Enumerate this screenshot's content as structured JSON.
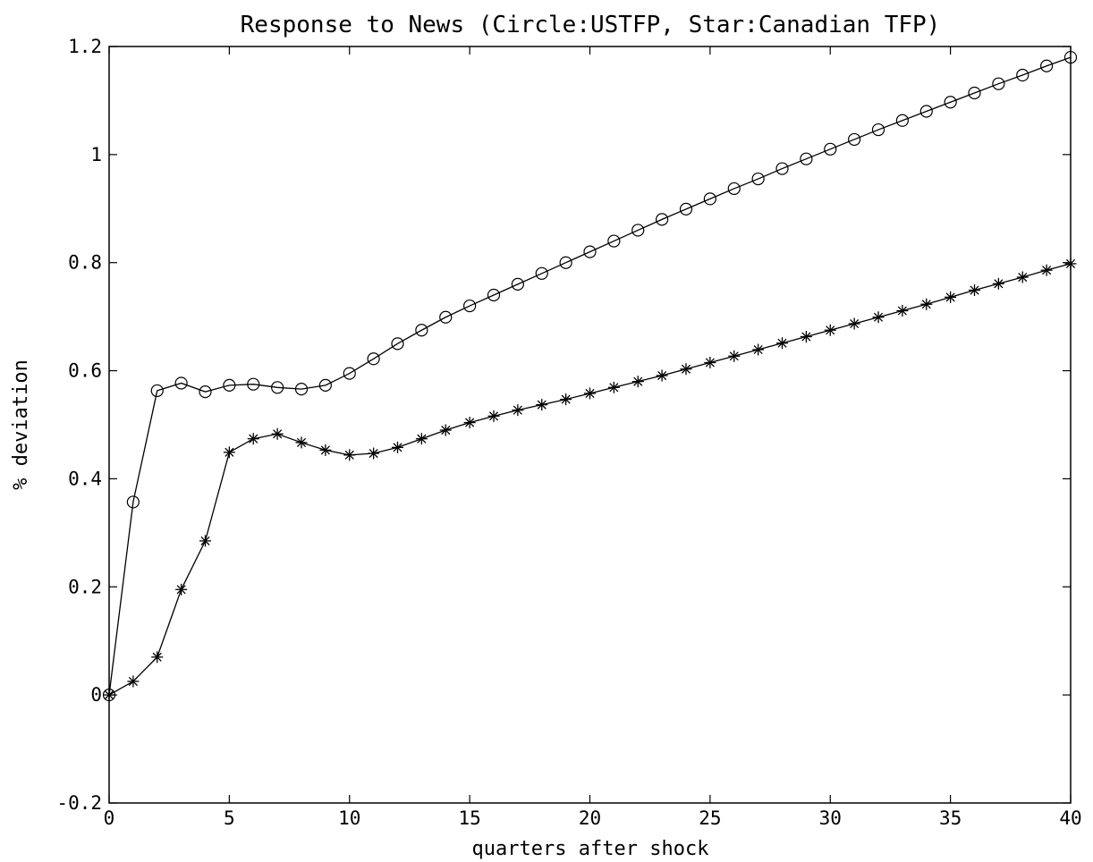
{
  "chart_data": {
    "type": "line",
    "title": "Response to News (Circle:USTFP, Star:Canadian TFP)",
    "xlabel": "quarters after shock",
    "ylabel": "% deviation",
    "xlim": [
      0,
      40
    ],
    "ylim": [
      -0.2,
      1.2
    ],
    "xticks": [
      "0",
      "5",
      "10",
      "15",
      "20",
      "25",
      "30",
      "35",
      "40"
    ],
    "yticks": [
      "-0.2",
      "0",
      "0.2",
      "0.4",
      "0.6",
      "0.8",
      "1",
      "1.2"
    ],
    "grid": false,
    "x": [
      0,
      1,
      2,
      3,
      4,
      5,
      6,
      7,
      8,
      9,
      10,
      11,
      12,
      13,
      14,
      15,
      16,
      17,
      18,
      19,
      20,
      21,
      22,
      23,
      24,
      25,
      26,
      27,
      28,
      29,
      30,
      31,
      32,
      33,
      34,
      35,
      36,
      37,
      38,
      39,
      40
    ],
    "series": [
      {
        "name": "USTFP",
        "marker": "circle",
        "color": "#000000",
        "values": [
          0.0,
          0.357,
          0.563,
          0.577,
          0.561,
          0.573,
          0.575,
          0.569,
          0.566,
          0.573,
          0.595,
          0.622,
          0.65,
          0.675,
          0.699,
          0.72,
          0.74,
          0.76,
          0.78,
          0.8,
          0.82,
          0.84,
          0.86,
          0.88,
          0.899,
          0.918,
          0.937,
          0.955,
          0.974,
          0.992,
          1.01,
          1.028,
          1.046,
          1.063,
          1.08,
          1.097,
          1.114,
          1.131,
          1.147,
          1.164,
          1.18
        ]
      },
      {
        "name": "Canadian TFP",
        "marker": "star",
        "color": "#000000",
        "values": [
          0.0,
          0.025,
          0.07,
          0.195,
          0.285,
          0.449,
          0.474,
          0.483,
          0.467,
          0.453,
          0.444,
          0.447,
          0.458,
          0.474,
          0.49,
          0.504,
          0.516,
          0.527,
          0.537,
          0.547,
          0.558,
          0.569,
          0.58,
          0.591,
          0.603,
          0.615,
          0.627,
          0.639,
          0.651,
          0.663,
          0.675,
          0.687,
          0.699,
          0.711,
          0.723,
          0.736,
          0.749,
          0.761,
          0.773,
          0.786,
          0.798
        ]
      }
    ]
  }
}
